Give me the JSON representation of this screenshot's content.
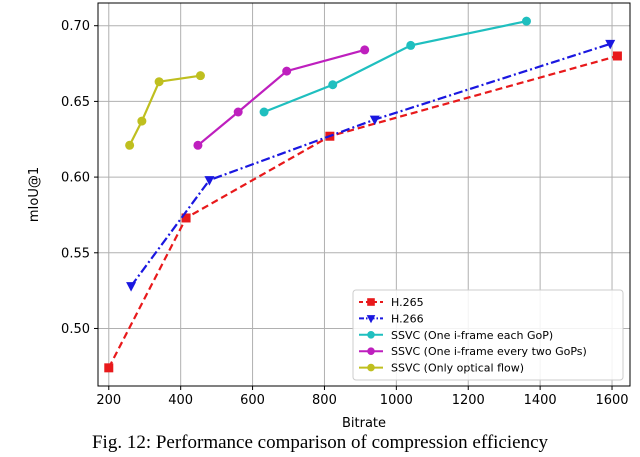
{
  "caption": "Fig. 12: Performance comparison of compression efficiency",
  "chart_data": {
    "type": "line",
    "title": "",
    "xlabel": "Bitrate",
    "ylabel": "mIoU@1",
    "xlim": [
      170,
      1650
    ],
    "ylim": [
      0.462,
      0.715
    ],
    "xticks": [
      200,
      400,
      600,
      800,
      1000,
      1200,
      1400,
      1600
    ],
    "yticks": [
      0.5,
      0.55,
      0.6,
      0.65,
      0.7
    ],
    "xtick_labels": [
      "200",
      "400",
      "600",
      "800",
      "1000",
      "1200",
      "1400",
      "1600"
    ],
    "ytick_labels": [
      "0.50",
      "0.55",
      "0.60",
      "0.65",
      "0.70"
    ],
    "grid": true,
    "legend_position": "lower-right",
    "series": [
      {
        "name": "H.265",
        "color": "#e8191b",
        "linestyle": "dashed",
        "marker": "square",
        "x": [
          200,
          415,
          815,
          1615
        ],
        "y": [
          0.474,
          0.573,
          0.627,
          0.68
        ]
      },
      {
        "name": "H.266",
        "color": "#1a17e0",
        "linestyle": "dashdot",
        "marker": "triangle-down",
        "x": [
          262,
          480,
          940,
          1595
        ],
        "y": [
          0.528,
          0.598,
          0.638,
          0.688
        ]
      },
      {
        "name": "SSVC (One i-frame each GoP)",
        "color": "#1fbfbf",
        "linestyle": "solid",
        "marker": "circle",
        "x": [
          632,
          823,
          1040,
          1362
        ],
        "y": [
          0.643,
          0.661,
          0.687,
          0.703
        ]
      },
      {
        "name": "SSVC (One i-frame every two GoPs)",
        "color": "#be1fbe",
        "linestyle": "solid",
        "marker": "circle",
        "x": [
          448,
          560,
          695,
          912
        ],
        "y": [
          0.621,
          0.643,
          0.67,
          0.684
        ]
      },
      {
        "name": "SSVC (Only optical flow)",
        "color": "#bfbf1f",
        "linestyle": "solid",
        "marker": "circle",
        "x": [
          258,
          292,
          340,
          455
        ],
        "y": [
          0.621,
          0.637,
          0.663,
          0.667
        ]
      }
    ]
  }
}
